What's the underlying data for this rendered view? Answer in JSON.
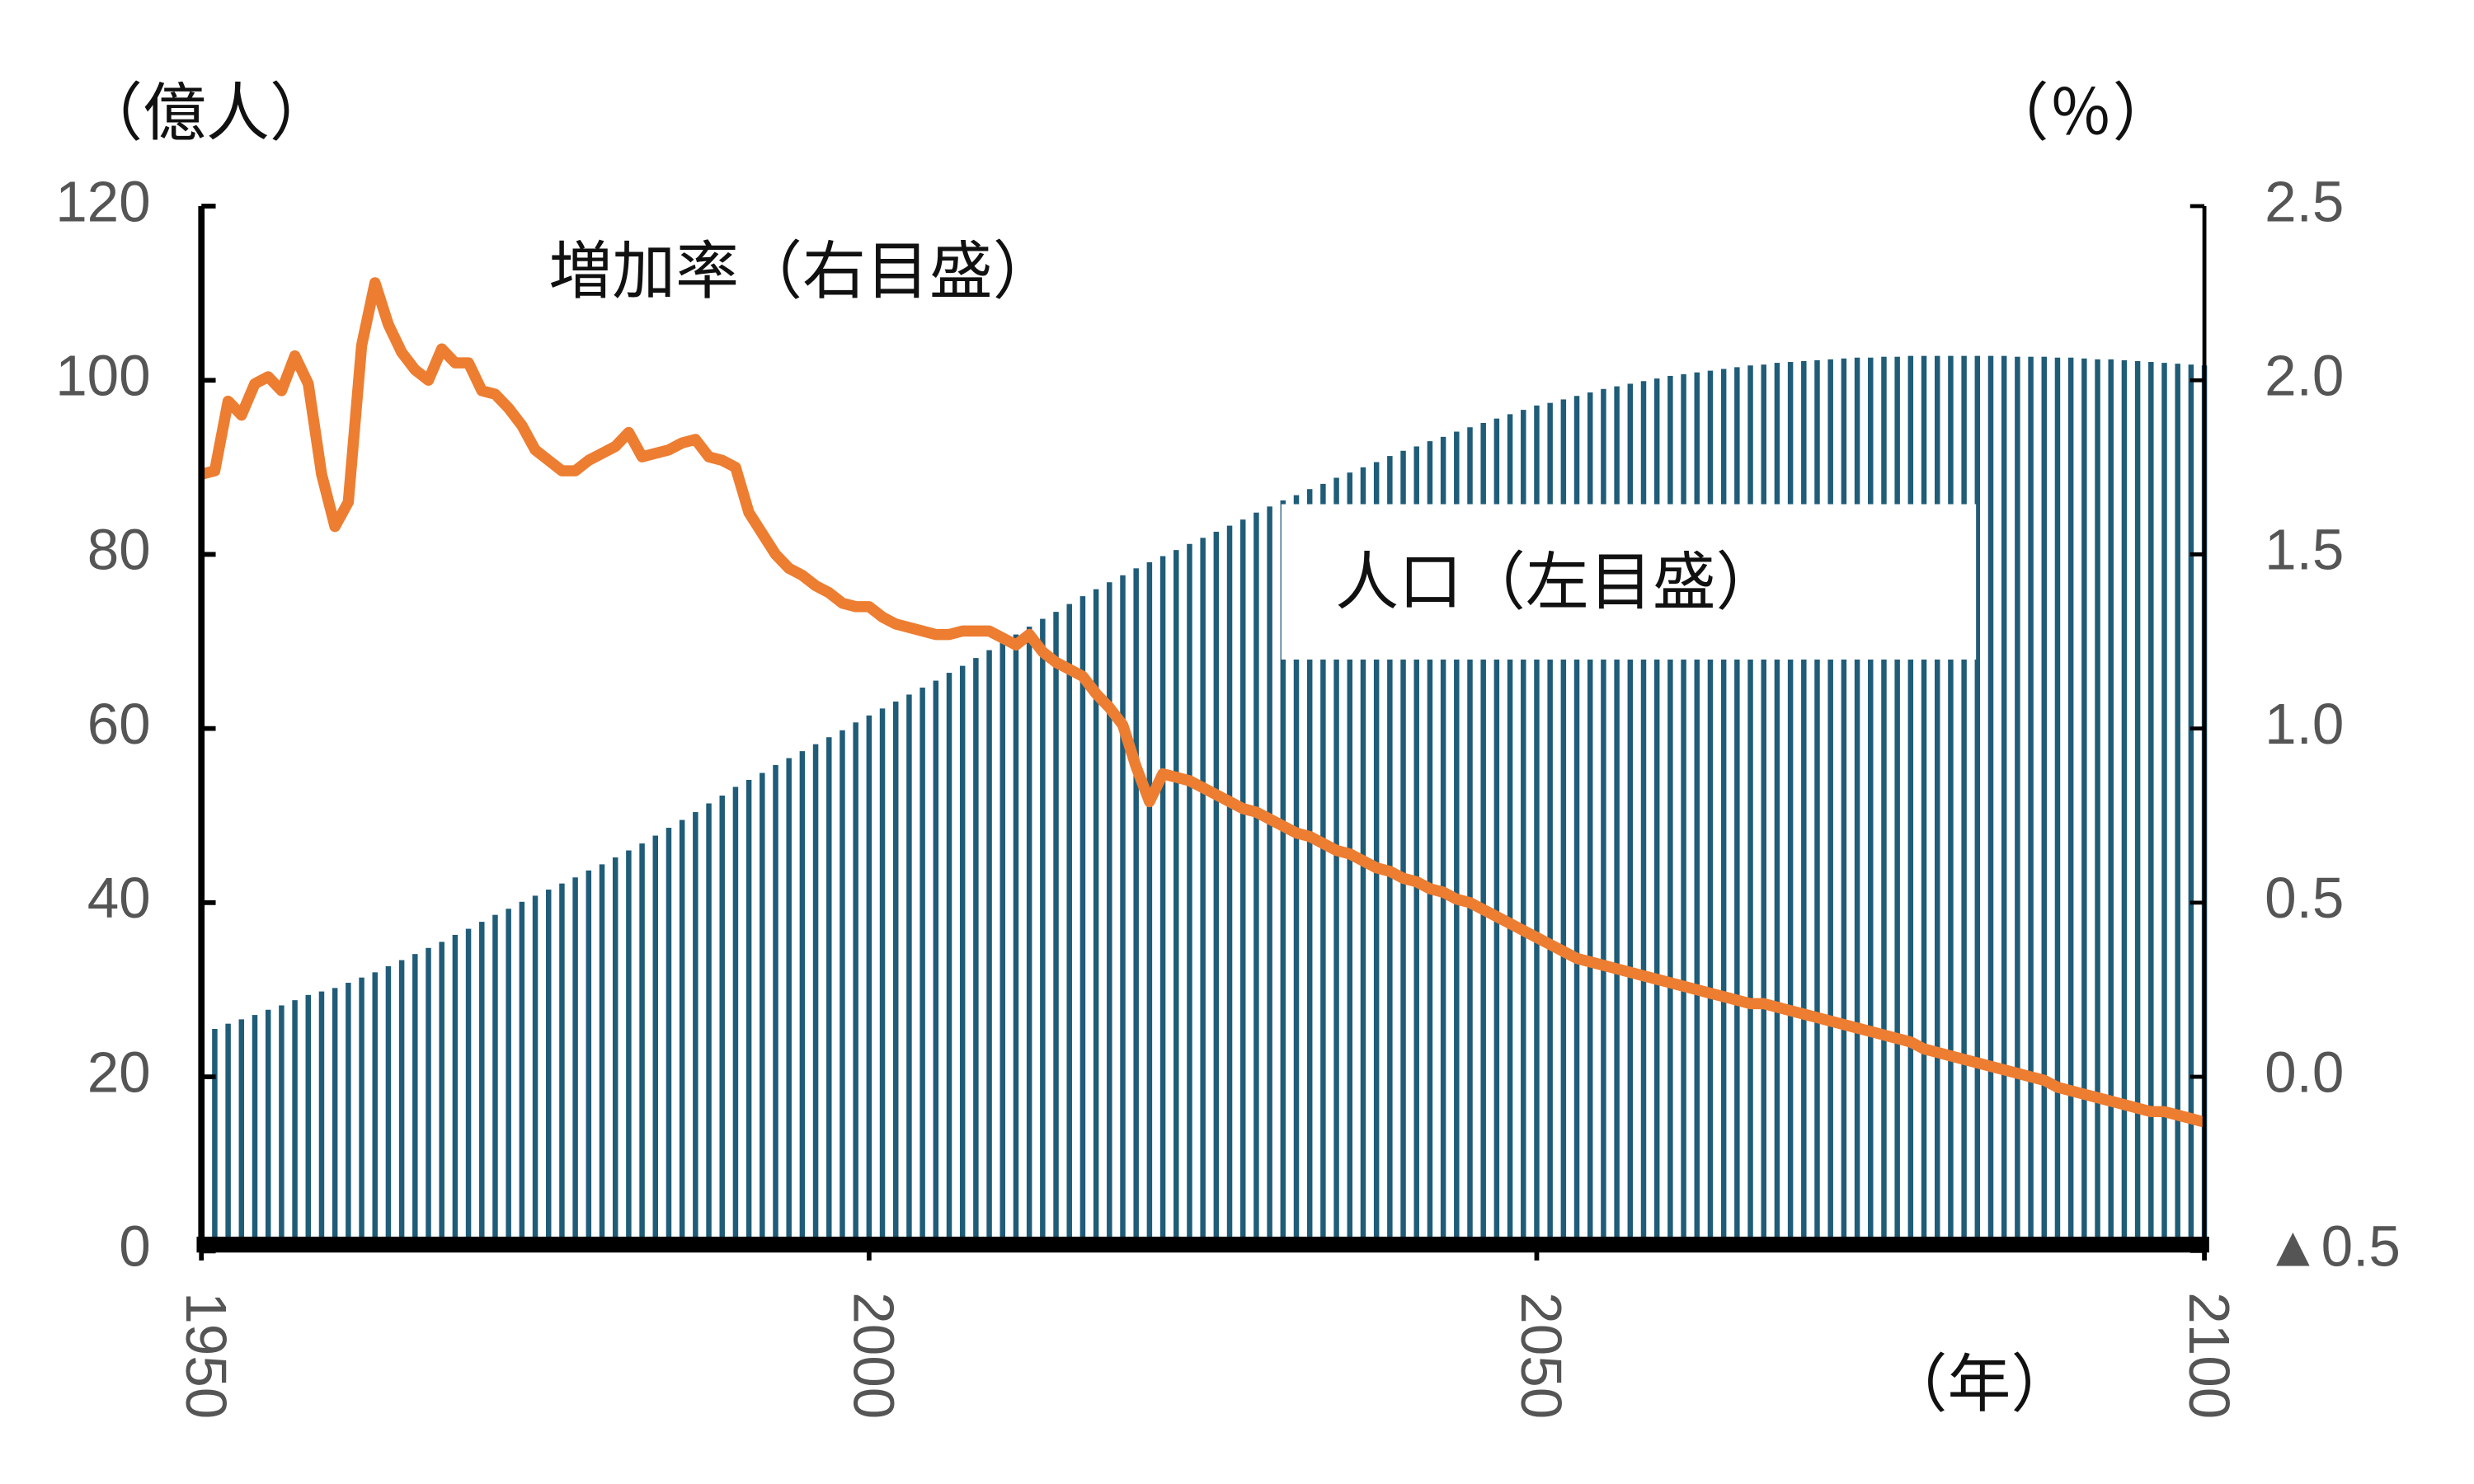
{
  "chart_data": {
    "type": "bar-line",
    "ylabel": "（億人）",
    "y2label": "（％）",
    "xlabel": "（年）",
    "x": [
      1950,
      1951,
      1952,
      1953,
      1954,
      1955,
      1956,
      1957,
      1958,
      1959,
      1960,
      1961,
      1962,
      1963,
      1964,
      1965,
      1966,
      1967,
      1968,
      1969,
      1970,
      1971,
      1972,
      1973,
      1974,
      1975,
      1976,
      1977,
      1978,
      1979,
      1980,
      1981,
      1982,
      1983,
      1984,
      1985,
      1986,
      1987,
      1988,
      1989,
      1990,
      1991,
      1992,
      1993,
      1994,
      1995,
      1996,
      1997,
      1998,
      1999,
      2000,
      2001,
      2002,
      2003,
      2004,
      2005,
      2006,
      2007,
      2008,
      2009,
      2010,
      2011,
      2012,
      2013,
      2014,
      2015,
      2016,
      2017,
      2018,
      2019,
      2020,
      2021,
      2022,
      2023,
      2024,
      2025,
      2026,
      2027,
      2028,
      2029,
      2030,
      2031,
      2032,
      2033,
      2034,
      2035,
      2036,
      2037,
      2038,
      2039,
      2040,
      2041,
      2042,
      2043,
      2044,
      2045,
      2046,
      2047,
      2048,
      2049,
      2050,
      2051,
      2052,
      2053,
      2054,
      2055,
      2056,
      2057,
      2058,
      2059,
      2060,
      2061,
      2062,
      2063,
      2064,
      2065,
      2066,
      2067,
      2068,
      2069,
      2070,
      2071,
      2072,
      2073,
      2074,
      2075,
      2076,
      2077,
      2078,
      2079,
      2080,
      2081,
      2082,
      2083,
      2084,
      2085,
      2086,
      2087,
      2088,
      2089,
      2090,
      2091,
      2092,
      2093,
      2094,
      2095,
      2096,
      2097,
      2098,
      2099,
      2100
    ],
    "series": [
      {
        "name": "人口（左目盛）",
        "color": "#1f5c78",
        "kind": "bar",
        "values": [
          25.0,
          25.5,
          26.1,
          26.6,
          27.1,
          27.7,
          28.2,
          28.8,
          29.4,
          29.8,
          30.2,
          30.8,
          31.4,
          32.0,
          32.7,
          33.4,
          34.1,
          34.8,
          35.5,
          36.3,
          37.0,
          37.8,
          38.6,
          39.3,
          40.1,
          40.8,
          41.5,
          42.2,
          42.9,
          43.7,
          44.4,
          45.2,
          46.0,
          46.8,
          47.7,
          48.6,
          49.5,
          50.4,
          51.4,
          52.3,
          53.3,
          54.1,
          54.9,
          55.8,
          56.6,
          57.4,
          58.2,
          59.0,
          59.8,
          60.7,
          61.5,
          62.3,
          63.1,
          63.9,
          64.7,
          65.5,
          66.4,
          67.2,
          68.1,
          69.0,
          69.9,
          70.8,
          71.7,
          72.6,
          73.4,
          74.3,
          75.2,
          76.0,
          76.8,
          77.6,
          78.4,
          79.1,
          79.8,
          80.5,
          81.2,
          81.9,
          82.6,
          83.3,
          84.0,
          84.8,
          85.5,
          86.2,
          86.8,
          87.5,
          88.1,
          88.8,
          89.4,
          90.0,
          90.6,
          91.3,
          91.9,
          92.4,
          93.0,
          93.5,
          94.1,
          94.6,
          95.1,
          95.6,
          96.1,
          96.6,
          97.1,
          97.4,
          97.8,
          98.2,
          98.6,
          99.0,
          99.3,
          99.6,
          99.9,
          100.2,
          100.5,
          100.7,
          100.9,
          101.1,
          101.3,
          101.5,
          101.7,
          101.8,
          102.0,
          102.1,
          102.2,
          102.3,
          102.4,
          102.5,
          102.6,
          102.6,
          102.7,
          102.7,
          102.8,
          102.8,
          102.8,
          102.8,
          102.8,
          102.8,
          102.8,
          102.8,
          102.7,
          102.7,
          102.7,
          102.6,
          102.6,
          102.5,
          102.4,
          102.4,
          102.3,
          102.2,
          102.1,
          102.0,
          101.9,
          101.8,
          101.7
        ]
      },
      {
        "name": "増加率（右目盛）",
        "color": "#ed7d31",
        "kind": "line",
        "axis": "y2",
        "values": [
          1.73,
          1.74,
          1.94,
          1.9,
          1.99,
          2.01,
          1.97,
          2.07,
          1.99,
          1.73,
          1.58,
          1.65,
          2.1,
          2.28,
          2.16,
          2.08,
          2.03,
          2.0,
          2.09,
          2.05,
          2.05,
          1.97,
          1.96,
          1.92,
          1.87,
          1.8,
          1.77,
          1.74,
          1.74,
          1.77,
          1.79,
          1.81,
          1.85,
          1.78,
          1.79,
          1.8,
          1.82,
          1.83,
          1.78,
          1.77,
          1.75,
          1.62,
          1.56,
          1.5,
          1.46,
          1.44,
          1.41,
          1.39,
          1.36,
          1.35,
          1.35,
          1.32,
          1.3,
          1.29,
          1.28,
          1.27,
          1.27,
          1.28,
          1.28,
          1.28,
          1.26,
          1.24,
          1.27,
          1.22,
          1.19,
          1.17,
          1.15,
          1.1,
          1.06,
          1.01,
          0.89,
          0.79,
          0.87,
          0.86,
          0.85,
          0.83,
          0.81,
          0.79,
          0.77,
          0.76,
          0.74,
          0.72,
          0.7,
          0.69,
          0.67,
          0.65,
          0.64,
          0.62,
          0.6,
          0.59,
          0.57,
          0.56,
          0.54,
          0.53,
          0.51,
          0.5,
          0.48,
          0.46,
          0.44,
          0.42,
          0.4,
          0.38,
          0.36,
          0.34,
          0.33,
          0.32,
          0.31,
          0.3,
          0.29,
          0.28,
          0.27,
          0.26,
          0.25,
          0.24,
          0.23,
          0.22,
          0.21,
          0.21,
          0.2,
          0.19,
          0.18,
          0.17,
          0.16,
          0.15,
          0.14,
          0.13,
          0.12,
          0.11,
          0.1,
          0.08,
          0.07,
          0.06,
          0.05,
          0.04,
          0.03,
          0.02,
          0.01,
          0.0,
          -0.01,
          -0.03,
          -0.04,
          -0.05,
          -0.06,
          -0.07,
          -0.08,
          -0.09,
          -0.1,
          -0.1,
          -0.11,
          -0.12,
          -0.13
        ]
      }
    ],
    "xlim": [
      1950,
      2100
    ],
    "xticks": [
      1950,
      2000,
      2050,
      2100
    ],
    "ylim": [
      0,
      120
    ],
    "yticks": [
      0,
      20,
      40,
      60,
      80,
      100,
      120
    ],
    "y2lim": [
      -0.5,
      2.5
    ],
    "y2ticks": [
      {
        "value": -0.5,
        "label": "▲0.5"
      },
      {
        "value": 0,
        "label": "0.0"
      },
      0.5,
      {
        "value": 1,
        "label": "1.0"
      },
      1.5,
      {
        "value": 2,
        "label": "2.0"
      },
      2.5
    ]
  }
}
